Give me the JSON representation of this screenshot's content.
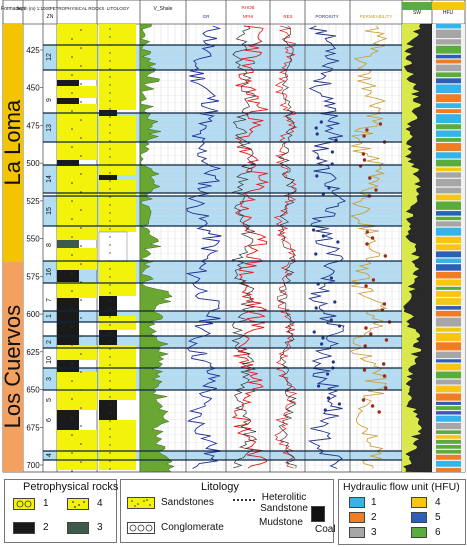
{
  "header": {
    "formation_label": "Forma tion",
    "depth_label": "Depth (m) 1:1000",
    "zone_label": "ZN",
    "petro_label": "PETROPHYSICAL ROCKS",
    "lito_label": "LITOLOGY",
    "vsh_label": "V_Shale",
    "curve_labels": [
      "GR",
      "NPHI",
      "RHOB",
      "RES",
      "POROSITY",
      "PERMEABILITY"
    ],
    "sw_label": "SW",
    "hfu_label": "HFU"
  },
  "formations": [
    {
      "name": "La Loma",
      "color": "#f5c400"
    },
    {
      "name": "Los Cuervos",
      "color": "#f4a160"
    }
  ],
  "depth_ticks": [
    "425",
    "450",
    "475",
    "500",
    "525",
    "550",
    "575",
    "600",
    "625",
    "650",
    "675",
    "700"
  ],
  "zone_numbers": [
    "12",
    "13",
    "14",
    "15",
    "16",
    "1",
    "2",
    "3",
    "4",
    "5",
    "6",
    "7",
    "8",
    "9",
    "10"
  ],
  "legend": {
    "petro_title": "Petrophysical rocks",
    "petro_items": [
      "1",
      "2",
      "3",
      "4"
    ],
    "lito_title": "Litology",
    "lito_items": [
      "Sandstones",
      "Conglomerate",
      "Heterolitic Sandstone",
      "Mudstone",
      "Coal"
    ],
    "hfu_title": "Hydraulic flow unit (HFU)",
    "hfu_items": [
      {
        "label": "1",
        "color": "#34b4e8"
      },
      {
        "label": "2",
        "color": "#f07d22"
      },
      {
        "label": "3",
        "color": "#a6a6a6"
      },
      {
        "label": "4",
        "color": "#f9c513"
      },
      {
        "label": "5",
        "color": "#2e5fb8"
      },
      {
        "label": "6",
        "color": "#5aac3c"
      }
    ]
  },
  "colors": {
    "sand": "#f2f20a",
    "shale": "#1a1a1a",
    "blue_band": "#a9d8f2",
    "vsh": "#6aa632",
    "gr": "#1f2f9a",
    "nphi": "#e31b1b",
    "res": "#1a1a1a",
    "porosity": "#22338c",
    "perm": "#9c2a10"
  }
}
